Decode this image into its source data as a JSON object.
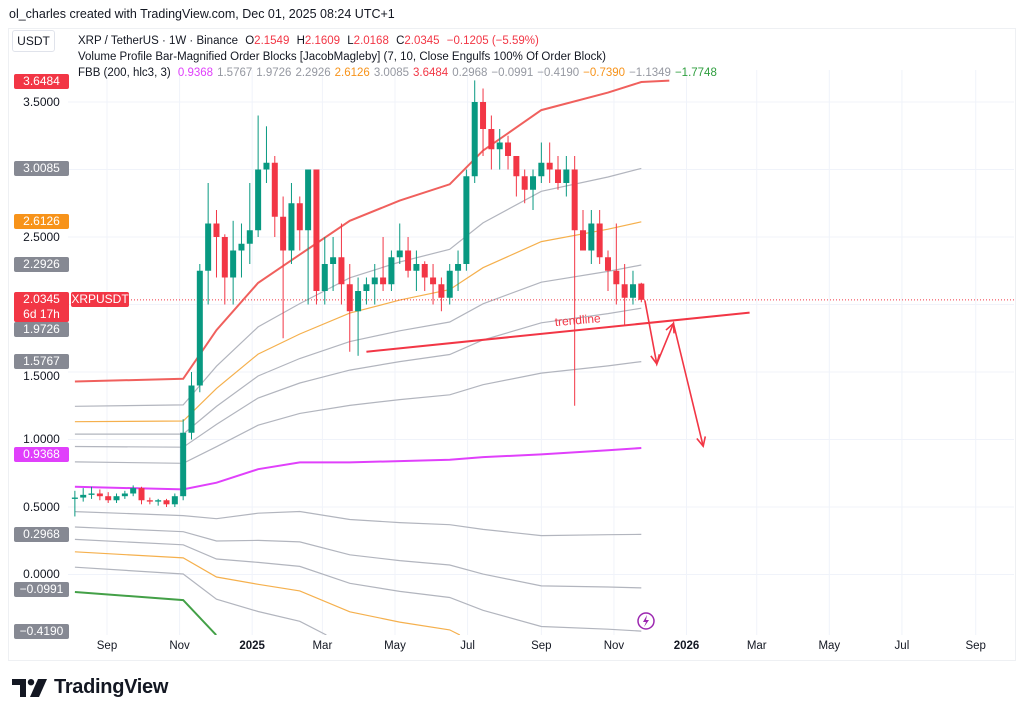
{
  "credit": "ol_charles created with TradingView.com, Dec 01, 2025 08:24 UTC+1",
  "currency_button": "USDT",
  "legend": {
    "symbol": "XRP / TetherUS · 1W · Binance",
    "o_label": "O",
    "o": "2.1549",
    "h_label": "H",
    "h": "2.1609",
    "l_label": "L",
    "l": "2.0168",
    "c_label": "C",
    "c": "2.0345",
    "change": "−0.1205 (−5.59%)",
    "indicator1": "Volume Profile Bar-Magnified Order Blocks [JacobMagleby] (7, 10, Close Engulfs 100% Of Order Block)",
    "indicator2_name": "FBB (200, hlc3, 3)",
    "indicator2_values": [
      {
        "v": "0.9368",
        "color": "#e040fb"
      },
      {
        "v": "1.5767",
        "color": "#9598a1"
      },
      {
        "v": "1.9726",
        "color": "#9598a1"
      },
      {
        "v": "2.2926",
        "color": "#9598a1"
      },
      {
        "v": "2.6126",
        "color": "#f7931a"
      },
      {
        "v": "3.0085",
        "color": "#9598a1"
      },
      {
        "v": "3.6484",
        "color": "#f23645"
      },
      {
        "v": "0.2968",
        "color": "#9598a1"
      },
      {
        "v": "−0.0991",
        "color": "#9598a1"
      },
      {
        "v": "−0.4190",
        "color": "#9598a1"
      },
      {
        "v": "−0.7390",
        "color": "#f7931a"
      },
      {
        "v": "−1.1349",
        "color": "#9598a1"
      },
      {
        "v": "−1.7748",
        "color": "#2e9e3e"
      }
    ]
  },
  "price_axis": {
    "ticks": [
      "3.5000",
      "2.5000",
      "1.5000",
      "1.0000",
      "0.5000",
      "0.0000"
    ],
    "badges": [
      {
        "text": "3.6484",
        "price": 3.6484,
        "color": "#f23645"
      },
      {
        "text": "3.0085",
        "price": 3.0085,
        "color": "#868993"
      },
      {
        "text": "2.6126",
        "price": 2.6126,
        "color": "#f7931a"
      },
      {
        "text": "2.2926",
        "price": 2.2926,
        "color": "#868993"
      },
      {
        "text": "1.9726",
        "price": 1.9726,
        "color": "#868993"
      },
      {
        "text": "1.5767",
        "price": 1.5767,
        "color": "#868993"
      },
      {
        "text": "0.9368",
        "price": 0.9368,
        "color": "#e040fb"
      },
      {
        "text": "0.2968",
        "price": 0.2968,
        "color": "#868993"
      },
      {
        "text": "−0.0991",
        "price": -0.0991,
        "color": "#868993"
      },
      {
        "text": "−0.4190",
        "price": -0.419,
        "color": "#868993"
      }
    ],
    "last_price": {
      "text": "2.0345",
      "countdown": "6d 17h",
      "symbol": "XRPUSDT",
      "price": 2.0345,
      "color": "#f23645"
    }
  },
  "time_axis": [
    {
      "label": "Sep",
      "date": "2024-09-01",
      "bold": false
    },
    {
      "label": "Nov",
      "date": "2024-11-01",
      "bold": false
    },
    {
      "label": "2025",
      "date": "2025-01-01",
      "bold": true
    },
    {
      "label": "Mar",
      "date": "2025-03-01",
      "bold": false
    },
    {
      "label": "May",
      "date": "2025-05-01",
      "bold": false
    },
    {
      "label": "Jul",
      "date": "2025-07-01",
      "bold": false
    },
    {
      "label": "Sep",
      "date": "2025-09-01",
      "bold": false
    },
    {
      "label": "Nov",
      "date": "2025-11-01",
      "bold": false
    },
    {
      "label": "2026",
      "date": "2026-01-01",
      "bold": true
    },
    {
      "label": "Mar",
      "date": "2026-03-01",
      "bold": false
    },
    {
      "label": "May",
      "date": "2026-05-01",
      "bold": false
    },
    {
      "label": "Jul",
      "date": "2026-07-01",
      "bold": false
    },
    {
      "label": "Sep",
      "date": "2026-09-01",
      "bold": false
    }
  ],
  "chart_data": {
    "type": "candlestick",
    "symbol": "XRPUSDT",
    "interval": "1W",
    "first_candle": "2024-08-05",
    "ylim": [
      -0.45,
      3.7
    ],
    "grid": true,
    "colors": {
      "up": "#089981",
      "down": "#f23645"
    },
    "ohlc": [
      [
        0.56,
        0.62,
        0.43,
        0.57
      ],
      [
        0.57,
        0.64,
        0.54,
        0.59
      ],
      [
        0.59,
        0.65,
        0.56,
        0.6
      ],
      [
        0.6,
        0.63,
        0.55,
        0.58
      ],
      [
        0.58,
        0.61,
        0.53,
        0.55
      ],
      [
        0.55,
        0.6,
        0.53,
        0.58
      ],
      [
        0.58,
        0.62,
        0.56,
        0.6
      ],
      [
        0.6,
        0.66,
        0.58,
        0.64
      ],
      [
        0.64,
        0.65,
        0.52,
        0.55
      ],
      [
        0.55,
        0.57,
        0.52,
        0.54
      ],
      [
        0.54,
        0.56,
        0.51,
        0.55
      ],
      [
        0.55,
        0.56,
        0.5,
        0.52
      ],
      [
        0.52,
        0.6,
        0.5,
        0.58
      ],
      [
        0.58,
        1.15,
        0.55,
        1.05
      ],
      [
        1.05,
        1.5,
        1.0,
        1.4
      ],
      [
        1.4,
        2.3,
        1.35,
        2.25
      ],
      [
        2.25,
        2.9,
        2.0,
        2.6
      ],
      [
        2.6,
        2.7,
        2.2,
        2.5
      ],
      [
        2.5,
        2.52,
        2.0,
        2.2
      ],
      [
        2.2,
        2.62,
        2.0,
        2.4
      ],
      [
        2.4,
        2.6,
        2.2,
        2.45
      ],
      [
        2.45,
        2.9,
        2.3,
        2.55
      ],
      [
        2.55,
        3.4,
        2.5,
        3.0
      ],
      [
        3.0,
        3.32,
        2.9,
        3.05
      ],
      [
        3.05,
        3.1,
        2.5,
        2.65
      ],
      [
        2.65,
        2.8,
        1.75,
        2.4
      ],
      [
        2.4,
        2.9,
        2.3,
        2.75
      ],
      [
        2.75,
        2.8,
        2.4,
        2.55
      ],
      [
        2.55,
        3.0,
        2.0,
        3.0
      ],
      [
        3.0,
        3.0,
        2.0,
        2.1
      ],
      [
        2.1,
        2.5,
        2.0,
        2.3
      ],
      [
        2.3,
        2.5,
        2.1,
        2.35
      ],
      [
        2.35,
        2.6,
        2.0,
        2.15
      ],
      [
        2.15,
        2.3,
        1.65,
        1.95
      ],
      [
        1.95,
        2.2,
        1.62,
        2.1
      ],
      [
        2.1,
        2.2,
        2.0,
        2.15
      ],
      [
        2.15,
        2.3,
        2.0,
        2.2
      ],
      [
        2.2,
        2.5,
        2.1,
        2.15
      ],
      [
        2.15,
        2.4,
        2.1,
        2.35
      ],
      [
        2.35,
        2.6,
        2.3,
        2.4
      ],
      [
        2.4,
        2.5,
        2.2,
        2.25
      ],
      [
        2.25,
        2.4,
        2.1,
        2.3
      ],
      [
        2.3,
        2.32,
        2.1,
        2.2
      ],
      [
        2.2,
        2.3,
        2.0,
        2.15
      ],
      [
        2.15,
        2.2,
        1.95,
        2.05
      ],
      [
        2.05,
        2.3,
        2.0,
        2.25
      ],
      [
        2.25,
        2.4,
        2.1,
        2.3
      ],
      [
        2.3,
        3.0,
        2.25,
        2.95
      ],
      [
        2.95,
        3.66,
        2.9,
        3.5
      ],
      [
        3.5,
        3.6,
        3.1,
        3.3
      ],
      [
        3.3,
        3.4,
        3.0,
        3.15
      ],
      [
        3.15,
        3.3,
        3.0,
        3.2
      ],
      [
        3.2,
        3.25,
        3.0,
        3.1
      ],
      [
        3.1,
        3.1,
        2.8,
        2.95
      ],
      [
        2.95,
        3.0,
        2.75,
        2.85
      ],
      [
        2.85,
        3.0,
        2.7,
        2.95
      ],
      [
        2.95,
        3.2,
        2.9,
        3.05
      ],
      [
        3.05,
        3.2,
        2.9,
        3.0
      ],
      [
        3.0,
        3.1,
        2.85,
        2.9
      ],
      [
        2.9,
        3.1,
        2.8,
        3.0
      ],
      [
        3.0,
        3.1,
        1.25,
        2.55
      ],
      [
        2.55,
        2.7,
        2.4,
        2.4
      ],
      [
        2.4,
        2.7,
        2.3,
        2.6
      ],
      [
        2.6,
        2.7,
        2.3,
        2.35
      ],
      [
        2.35,
        2.4,
        2.1,
        2.25
      ],
      [
        2.25,
        2.6,
        2.0,
        2.15
      ],
      [
        2.15,
        2.3,
        1.85,
        2.05
      ],
      [
        2.05,
        2.25,
        2.0,
        2.15
      ],
      [
        2.1549,
        2.1609,
        2.0168,
        2.0345
      ]
    ],
    "fbb": {
      "ratios": [
        1,
        0.764,
        0.618,
        0.5,
        0.382,
        0.236,
        0,
        -0.236,
        -0.382,
        -0.5,
        -0.618,
        -0.764,
        -1
      ],
      "colors": [
        "#f0605d",
        "#b2b5be",
        "#f5b04d",
        "#b2b5be",
        "#b2b5be",
        "#b2b5be",
        "#e040fb",
        "#b2b5be",
        "#b2b5be",
        "#b2b5be",
        "#f5b04d",
        "#b2b5be",
        "#43a047"
      ],
      "dates": [
        "2024-08-05",
        "2024-11-04",
        "2024-12-02",
        "2025-01-06",
        "2025-02-10",
        "2025-03-24",
        "2025-05-05",
        "2025-06-16",
        "2025-07-14",
        "2025-09-01",
        "2025-10-27",
        "2025-11-24"
      ],
      "basis": [
        0.65,
        0.63,
        0.68,
        0.78,
        0.83,
        0.83,
        0.84,
        0.85,
        0.87,
        0.89,
        0.92,
        0.9368
      ],
      "upper": [
        1.43,
        1.45,
        1.81,
        2.16,
        2.37,
        2.62,
        2.77,
        2.89,
        3.14,
        3.44,
        3.57,
        3.6484
      ]
    },
    "drawings": {
      "trendline": {
        "label": "trendline",
        "color": "#f23645",
        "points": [
          [
            "2025-04-07",
            1.65
          ],
          [
            "2026-02-23",
            1.94
          ]
        ]
      },
      "arrow_path": {
        "color": "#f23645",
        "points": [
          [
            "2025-11-27",
            2.03
          ],
          [
            "2025-12-07",
            1.56
          ],
          [
            "2025-12-21",
            1.86
          ],
          [
            "2026-01-15",
            0.95
          ]
        ]
      }
    }
  },
  "branding": {
    "logo_text": "TradingView"
  }
}
